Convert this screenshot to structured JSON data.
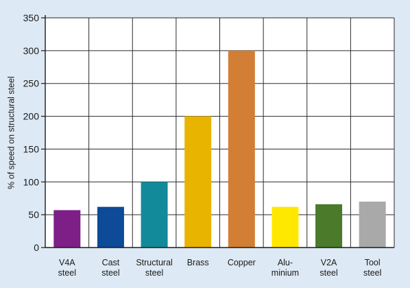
{
  "chart_data": {
    "type": "bar",
    "title": "",
    "xlabel": "",
    "ylabel": "% of speed on structural steel",
    "ylim": [
      0,
      350
    ],
    "yticks": [
      0,
      50,
      100,
      150,
      200,
      250,
      300,
      350
    ],
    "grid": true,
    "legend": "none",
    "categories": [
      [
        "V4A",
        "steel"
      ],
      [
        "Cast",
        "steel"
      ],
      [
        "Structural",
        "steel"
      ],
      [
        "Brass"
      ],
      [
        "Copper"
      ],
      [
        "Alu-",
        "minium"
      ],
      [
        "V2A",
        "steel"
      ],
      [
        "Tool",
        "steel"
      ]
    ],
    "values": [
      57,
      62,
      100,
      200,
      300,
      62,
      66,
      70
    ],
    "colors": [
      "#7d1f86",
      "#0d4a97",
      "#138a99",
      "#e8b400",
      "#d37e35",
      "#ffe800",
      "#4a7a2a",
      "#a9a9a9"
    ],
    "plot_background": "#ffffff",
    "grid_color": "#2a2a2a"
  }
}
